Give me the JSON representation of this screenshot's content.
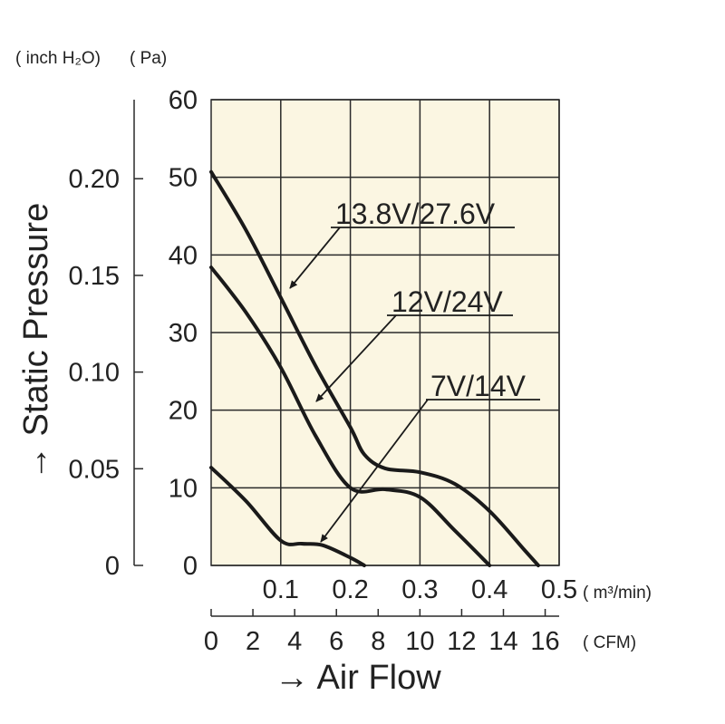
{
  "colors": {
    "plot_background": "#fbf6e2",
    "grid": "#2a2a2a",
    "curve": "#1a1a1a",
    "text": "#222222"
  },
  "chart_data": {
    "type": "line",
    "title": "",
    "xlabel": "→ Air Flow",
    "ylabel": "→ Static Pressure",
    "xlim": [
      0,
      0.5
    ],
    "ylim": [
      0,
      60
    ],
    "grid": true,
    "legend": "none",
    "units": {
      "x_primary": "( m³/min)",
      "x_secondary": "( CFM)",
      "y_primary": "( Pa)",
      "y_secondary": "( inch H₂O)"
    },
    "x_ticks": [
      "0.1",
      "0.2",
      "0.3",
      "0.4",
      "0.5"
    ],
    "x_tick_values": [
      0.1,
      0.2,
      0.3,
      0.4,
      0.5
    ],
    "x2_ticks": [
      "0",
      "2",
      "4",
      "6",
      "8",
      "10",
      "12",
      "14",
      "16"
    ],
    "x2_tick_values": [
      0,
      2,
      4,
      6,
      8,
      10,
      12,
      14,
      16
    ],
    "y_ticks": [
      "0",
      "10",
      "20",
      "30",
      "40",
      "50",
      "60"
    ],
    "y_tick_values": [
      0,
      10,
      20,
      30,
      40,
      50,
      60
    ],
    "y2_ticks": [
      "0",
      "0.05",
      "0.10",
      "0.15",
      "0.20"
    ],
    "y2_tick_values": [
      0,
      0.05,
      0.1,
      0.15,
      0.2
    ],
    "series": [
      {
        "name": "13.8V/27.6V",
        "x": [
          0,
          0.05,
          0.1,
          0.15,
          0.2,
          0.22,
          0.25,
          0.3,
          0.35,
          0.4,
          0.45,
          0.47
        ],
        "y": [
          50.7,
          43.2,
          34.5,
          25.7,
          17.8,
          14.3,
          12.5,
          12.0,
          10.5,
          7.0,
          2.0,
          0
        ]
      },
      {
        "name": "12V/24V",
        "x": [
          0,
          0.05,
          0.1,
          0.15,
          0.2,
          0.25,
          0.3,
          0.35,
          0.4
        ],
        "y": [
          38.4,
          32.6,
          25.5,
          16.7,
          10.0,
          9.8,
          8.8,
          4.5,
          0
        ]
      },
      {
        "name": "7V/14V",
        "x": [
          0,
          0.05,
          0.1,
          0.13,
          0.16,
          0.2,
          0.22
        ],
        "y": [
          12.6,
          8.3,
          3.2,
          2.8,
          2.6,
          1.0,
          0
        ]
      }
    ],
    "annotations": [
      {
        "text": "13.8V/27.6V",
        "series": "13.8V/27.6V"
      },
      {
        "text": "12V/24V",
        "series": "12V/24V"
      },
      {
        "text": "7V/14V",
        "series": "7V/14V"
      }
    ]
  }
}
